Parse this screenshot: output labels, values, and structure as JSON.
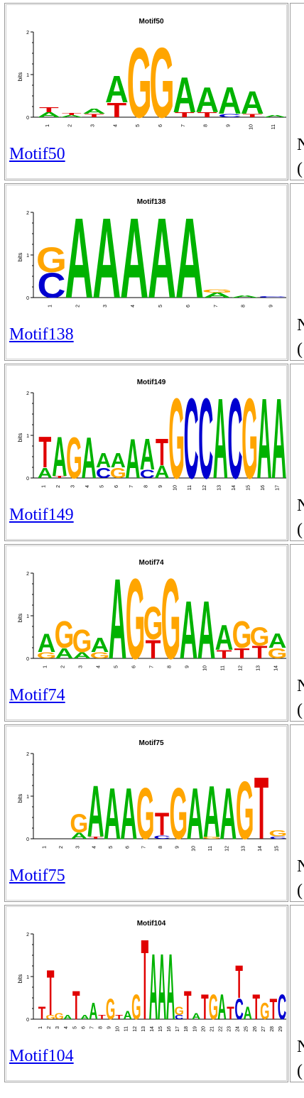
{
  "rows": [
    {
      "title": "Motif50",
      "link": "Motif50",
      "positions": [
        "1",
        "2",
        "3",
        "4",
        "5",
        "6",
        "7",
        "8",
        "9",
        "10",
        "11"
      ],
      "side": [
        "N",
        "("
      ],
      "stacks": [
        [
          [
            "A",
            "#00b200",
            0.12
          ],
          [
            "T",
            "#e00000",
            0.12
          ]
        ],
        [
          [
            "A",
            "#00b200",
            0.05
          ],
          [
            "T",
            "#e00000",
            0.05
          ]
        ],
        [
          [
            "T",
            "#e00000",
            0.08
          ],
          [
            "A",
            "#00b200",
            0.12
          ]
        ],
        [
          [
            "T",
            "#e00000",
            0.35
          ],
          [
            "A",
            "#00b200",
            0.65
          ]
        ],
        [
          [
            "G",
            "#ffa500",
            1.7
          ]
        ],
        [
          [
            "G",
            "#ffa500",
            1.7
          ]
        ],
        [
          [
            "T",
            "#e00000",
            0.12
          ],
          [
            "A",
            "#00b200",
            0.85
          ]
        ],
        [
          [
            "T",
            "#e00000",
            0.12
          ],
          [
            "A",
            "#00b200",
            0.6
          ]
        ],
        [
          [
            "C",
            "#0000d0",
            0.08
          ],
          [
            "A",
            "#00b200",
            0.65
          ]
        ],
        [
          [
            "T",
            "#e00000",
            0.08
          ],
          [
            "A",
            "#00b200",
            0.55
          ]
        ],
        [
          [
            "A",
            "#00b200",
            0.05
          ]
        ]
      ]
    },
    {
      "title": "Motif138",
      "link": "Motif138",
      "positions": [
        "1",
        "2",
        "3",
        "4",
        "5",
        "6",
        "7",
        "8",
        "9"
      ],
      "side": [
        "N",
        "("
      ],
      "stacks": [
        [
          [
            "C",
            "#0000d0",
            0.6
          ],
          [
            "G",
            "#ffa500",
            0.6
          ]
        ],
        [
          [
            "A",
            "#00b200",
            1.95
          ]
        ],
        [
          [
            "A",
            "#00b200",
            1.95
          ]
        ],
        [
          [
            "A",
            "#00b200",
            1.95
          ]
        ],
        [
          [
            "A",
            "#00b200",
            1.95
          ]
        ],
        [
          [
            "A",
            "#00b200",
            1.95
          ]
        ],
        [
          [
            "A",
            "#00b200",
            0.12
          ],
          [
            "G",
            "#ffa500",
            0.08
          ]
        ],
        [
          [
            "A",
            "#00b200",
            0.06
          ]
        ],
        [
          [
            "C",
            "#0000d0",
            0.03
          ]
        ]
      ]
    },
    {
      "title": "Motif149",
      "link": "Motif149",
      "positions": [
        "1",
        "2",
        "3",
        "4",
        "5",
        "6",
        "7",
        "8",
        "9",
        "10",
        "11",
        "12",
        "13",
        "14",
        "15",
        "16",
        "17"
      ],
      "side": [
        "N",
        "("
      ],
      "stacks": [
        [
          [
            "A",
            "#00b200",
            0.25
          ],
          [
            "T",
            "#e00000",
            0.75
          ]
        ],
        [
          [
            "T",
            "#e00000",
            0.05
          ],
          [
            "A",
            "#00b200",
            0.95
          ]
        ],
        [
          [
            "G",
            "#ffa500",
            1.0
          ]
        ],
        [
          [
            "A",
            "#00b200",
            1.0
          ]
        ],
        [
          [
            "C",
            "#0000d0",
            0.25
          ],
          [
            "A",
            "#00b200",
            0.35
          ]
        ],
        [
          [
            "G",
            "#ffa500",
            0.25
          ],
          [
            "A",
            "#00b200",
            0.35
          ]
        ],
        [
          [
            "A",
            "#00b200",
            0.95
          ]
        ],
        [
          [
            "C",
            "#0000d0",
            0.2
          ],
          [
            "A",
            "#00b200",
            0.75
          ]
        ],
        [
          [
            "A",
            "#00b200",
            0.3
          ],
          [
            "T",
            "#e00000",
            0.65
          ]
        ],
        [
          [
            "G",
            "#ffa500",
            1.95
          ]
        ],
        [
          [
            "C",
            "#0000d0",
            1.95
          ]
        ],
        [
          [
            "C",
            "#0000d0",
            1.95
          ]
        ],
        [
          [
            "A",
            "#00b200",
            1.95
          ]
        ],
        [
          [
            "C",
            "#0000d0",
            1.95
          ]
        ],
        [
          [
            "G",
            "#ffa500",
            1.95
          ]
        ],
        [
          [
            "A",
            "#00b200",
            1.95
          ]
        ],
        [
          [
            "A",
            "#00b200",
            1.95
          ]
        ]
      ]
    },
    {
      "title": "Motif74",
      "link": "Motif74",
      "positions": [
        "1",
        "2",
        "3",
        "4",
        "5",
        "6",
        "7",
        "8",
        "9",
        "10",
        "11",
        "12",
        "13",
        "14"
      ],
      "side": [
        "N",
        "("
      ],
      "stacks": [
        [
          [
            "G",
            "#ffa500",
            0.15
          ],
          [
            "A",
            "#00b200",
            0.45
          ]
        ],
        [
          [
            "A",
            "#00b200",
            0.25
          ],
          [
            "G",
            "#ffa500",
            0.65
          ]
        ],
        [
          [
            "A",
            "#00b200",
            0.15
          ],
          [
            "G",
            "#ffa500",
            0.55
          ]
        ],
        [
          [
            "G",
            "#ffa500",
            0.15
          ],
          [
            "A",
            "#00b200",
            0.35
          ]
        ],
        [
          [
            "A",
            "#00b200",
            1.95
          ]
        ],
        [
          [
            "G",
            "#ffa500",
            1.95
          ]
        ],
        [
          [
            "T",
            "#e00000",
            0.45
          ],
          [
            "G",
            "#ffa500",
            0.8
          ]
        ],
        [
          [
            "G",
            "#ffa500",
            1.95
          ]
        ],
        [
          [
            "A",
            "#00b200",
            1.4
          ]
        ],
        [
          [
            "A",
            "#00b200",
            1.4
          ]
        ],
        [
          [
            "T",
            "#e00000",
            0.2
          ],
          [
            "A",
            "#00b200",
            0.6
          ]
        ],
        [
          [
            "T",
            "#e00000",
            0.25
          ],
          [
            "G",
            "#ffa500",
            0.65
          ]
        ],
        [
          [
            "T",
            "#e00000",
            0.3
          ],
          [
            "G",
            "#ffa500",
            0.45
          ]
        ],
        [
          [
            "G",
            "#ffa500",
            0.25
          ],
          [
            "A",
            "#00b200",
            0.35
          ]
        ]
      ]
    },
    {
      "title": "Motif75",
      "link": "Motif75",
      "positions": [
        "1",
        "2",
        "3",
        "4",
        "5",
        "6",
        "7",
        "8",
        "9",
        "10",
        "11",
        "12",
        "13",
        "14",
        "15"
      ],
      "side": [
        "N",
        "("
      ],
      "stacks": [
        [],
        [],
        [
          [
            "A",
            "#00b200",
            0.15
          ],
          [
            "G",
            "#ffa500",
            0.45
          ]
        ],
        [
          [
            "T",
            "#e00000",
            0.06
          ],
          [
            "A",
            "#00b200",
            1.25
          ]
        ],
        [
          [
            "A",
            "#00b200",
            1.25
          ]
        ],
        [
          [
            "A",
            "#00b200",
            1.25
          ]
        ],
        [
          [
            "G",
            "#ffa500",
            1.25
          ]
        ],
        [
          [
            "C",
            "#0000d0",
            0.08
          ],
          [
            "T",
            "#e00000",
            0.55
          ]
        ],
        [
          [
            "G",
            "#ffa500",
            1.25
          ]
        ],
        [
          [
            "A",
            "#00b200",
            1.25
          ]
        ],
        [
          [
            "G",
            "#ffa500",
            0.05
          ],
          [
            "A",
            "#00b200",
            1.25
          ]
        ],
        [
          [
            "A",
            "#00b200",
            1.25
          ]
        ],
        [
          [
            "G",
            "#ffa500",
            1.4
          ]
        ],
        [
          [
            "T",
            "#e00000",
            1.5
          ]
        ],
        [
          [
            "C",
            "#0000d0",
            0.06
          ],
          [
            "G",
            "#ffa500",
            0.15
          ]
        ]
      ]
    },
    {
      "title": "Motif104",
      "link": "Motif104",
      "positions": [
        "1",
        "2",
        "3",
        "4",
        "5",
        "6",
        "7",
        "8",
        "9",
        "10",
        "11",
        "12",
        "13",
        "14",
        "15",
        "16",
        "17",
        "18",
        "19",
        "20",
        "21",
        "22",
        "23",
        "24",
        "25",
        "26",
        "27",
        "28",
        "29"
      ],
      "side": [
        "N",
        "("
      ],
      "stacks": [
        [
          [
            "T",
            "#e00000",
            0.3
          ]
        ],
        [
          [
            "G",
            "#ffa500",
            0.1
          ],
          [
            "T",
            "#e00000",
            1.1
          ]
        ],
        [
          [
            "G",
            "#ffa500",
            0.15
          ]
        ],
        [
          [
            "A",
            "#00b200",
            0.1
          ]
        ],
        [
          [
            "T",
            "#e00000",
            0.7
          ]
        ],
        [
          [
            "A",
            "#00b200",
            0.1
          ]
        ],
        [
          [
            "A",
            "#00b200",
            0.4
          ]
        ],
        [
          [
            "T",
            "#e00000",
            0.1
          ]
        ],
        [
          [
            "G",
            "#ffa500",
            0.5
          ]
        ],
        [
          [
            "T",
            "#e00000",
            0.1
          ]
        ],
        [
          [
            "A",
            "#00b200",
            0.2
          ]
        ],
        [
          [
            "G",
            "#ffa500",
            0.6
          ]
        ],
        [
          [
            "T",
            "#e00000",
            1.95
          ]
        ],
        [
          [
            "A",
            "#00b200",
            1.6
          ]
        ],
        [
          [
            "A",
            "#00b200",
            1.6
          ]
        ],
        [
          [
            "A",
            "#00b200",
            1.6
          ]
        ],
        [
          [
            "C",
            "#0000d0",
            0.1
          ],
          [
            "G",
            "#ffa500",
            0.2
          ]
        ],
        [
          [
            "T",
            "#e00000",
            0.7
          ]
        ],
        [
          [
            "A",
            "#00b200",
            0.15
          ]
        ],
        [
          [
            "T",
            "#e00000",
            0.6
          ]
        ],
        [
          [
            "G",
            "#ffa500",
            0.6
          ]
        ],
        [
          [
            "A",
            "#00b200",
            0.6
          ]
        ],
        [
          [
            "T",
            "#e00000",
            0.3
          ]
        ],
        [
          [
            "C",
            "#0000d0",
            0.5
          ],
          [
            "T",
            "#e00000",
            0.8
          ]
        ],
        [
          [
            "A",
            "#00b200",
            0.3
          ]
        ],
        [
          [
            "T",
            "#e00000",
            0.6
          ]
        ],
        [
          [
            "G",
            "#ffa500",
            0.4
          ]
        ],
        [
          [
            "T",
            "#e00000",
            0.5
          ]
        ],
        [
          [
            "C",
            "#0000d0",
            0.6
          ]
        ]
      ]
    }
  ]
}
